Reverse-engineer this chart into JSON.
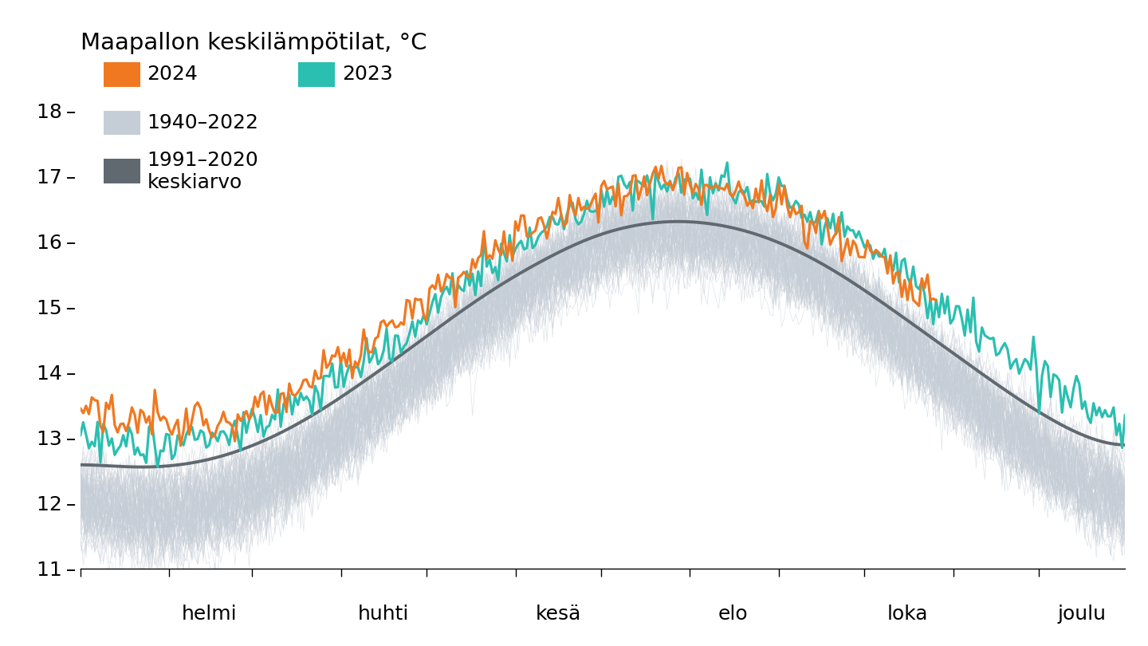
{
  "title": "Maapallon keskilämpötilat, °C",
  "color_2024": "#F07820",
  "color_2023": "#2ABFB0",
  "color_historical": "#C5CDD6",
  "color_mean": "#606870",
  "ylim": [
    11.0,
    18.5
  ],
  "yticks": [
    11,
    12,
    13,
    14,
    15,
    16,
    17,
    18
  ],
  "x_month_labels": [
    "helmi",
    "huhti",
    "kesä",
    "elo",
    "loka",
    "joulu"
  ],
  "background_color": "#FFFFFF",
  "historical_alpha": 0.5,
  "historical_lw": 0.55,
  "mean_lw": 2.8,
  "highlight_lw": 2.3,
  "title_fontsize": 21,
  "label_fontsize": 18,
  "tick_fontsize": 18
}
